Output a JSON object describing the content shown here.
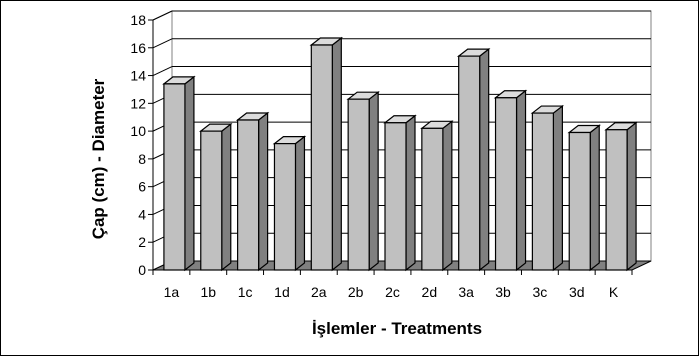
{
  "chart_data": {
    "type": "bar",
    "title": "",
    "xlabel": "İşlemler - Treatments",
    "ylabel": "Çap (cm) - Diameter",
    "categories": [
      "1a",
      "1b",
      "1c",
      "1d",
      "2a",
      "2b",
      "2c",
      "2d",
      "3a",
      "3b",
      "3c",
      "3d",
      "K"
    ],
    "values": [
      13.4,
      10.0,
      10.8,
      9.1,
      16.2,
      12.3,
      10.6,
      10.2,
      15.4,
      12.4,
      11.3,
      9.9,
      10.1
    ],
    "ylim": [
      0,
      18
    ],
    "yticks": [
      0,
      2,
      4,
      6,
      8,
      10,
      12,
      14,
      16,
      18
    ],
    "grid": true,
    "legend": "none",
    "colors": {
      "bar_front": "#c0c0c0",
      "bar_side": "#808080",
      "bar_top": "#dcdcdc",
      "outline": "#000000",
      "gridline": "#000000",
      "floor": "#808080"
    }
  }
}
